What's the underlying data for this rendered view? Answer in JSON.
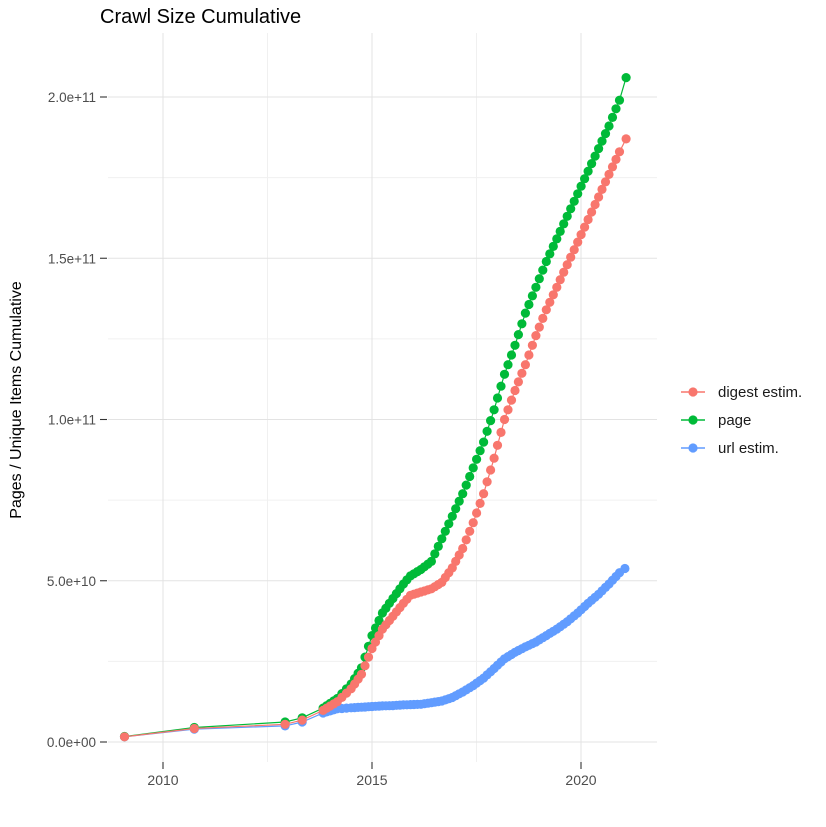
{
  "title": "Crawl Size Cumulative",
  "y_axis_title": "Pages / Unique Items Cumulative",
  "legend": {
    "position": "right",
    "items": [
      {
        "label": "digest estim.",
        "color": "#F8766D"
      },
      {
        "label": "page",
        "color": "#00BA38"
      },
      {
        "label": "url estim.",
        "color": "#619CFF"
      }
    ]
  },
  "colors": {
    "background": "#FFFFFF",
    "grid_major": "#E3E3E3",
    "grid_minor": "#F0F0F0",
    "tick_mark": "#333333",
    "tick_label": "#4D4D4D",
    "series_red": "#F8766D",
    "series_green": "#00BA38",
    "series_blue": "#619CFF"
  },
  "chart_data": {
    "type": "scatter",
    "title": "Crawl Size Cumulative",
    "xlabel": "",
    "ylabel": "Pages / Unique Items Cumulative",
    "x_tick_labels": [
      "2010",
      "2015",
      "2020"
    ],
    "x_tick_values": [
      2010,
      2015,
      2020
    ],
    "x_minor_tick_values": [
      2012.5,
      2017.5
    ],
    "y_tick_labels": [
      "0.0e+00",
      "5.0e+10",
      "1.0e+11",
      "1.5e+11",
      "2.0e+11"
    ],
    "y_tick_values_billions": [
      0,
      50,
      100,
      150,
      200
    ],
    "y_minor_tick_values_billions": [
      25,
      75,
      125,
      175
    ],
    "xlim": [
      2008.7,
      2021.8
    ],
    "ylim_billions": [
      0,
      212
    ],
    "grid": "major and minor light-gray gridlines on white panel",
    "legend_position": "right",
    "points_unit": "each point is [year, cumulative count in billions (1e9)]",
    "series": [
      {
        "name": "digest estim.",
        "color": "#F8766D",
        "points": [
          [
            2009.08,
            1.6
          ],
          [
            2010.75,
            4.2
          ],
          [
            2012.92,
            5.5
          ],
          [
            2013.33,
            6.8
          ],
          [
            2013.83,
            9.8
          ],
          [
            2014.17,
            12.5
          ],
          [
            2014.5,
            16.5
          ],
          [
            2014.75,
            21
          ],
          [
            2015.0,
            29
          ],
          [
            2015.25,
            35
          ],
          [
            2015.5,
            39
          ],
          [
            2015.75,
            43
          ],
          [
            2015.92,
            45.5
          ],
          [
            2016.17,
            46.5
          ],
          [
            2016.42,
            47.5
          ],
          [
            2016.67,
            49.5
          ],
          [
            2016.92,
            54
          ],
          [
            2017.17,
            60
          ],
          [
            2017.42,
            68
          ],
          [
            2017.67,
            77
          ],
          [
            2017.92,
            88
          ],
          [
            2018.17,
            100
          ],
          [
            2018.42,
            109
          ],
          [
            2018.67,
            117
          ],
          [
            2018.92,
            126
          ],
          [
            2019.17,
            134
          ],
          [
            2019.42,
            141
          ],
          [
            2019.67,
            148
          ],
          [
            2019.92,
            155
          ],
          [
            2020.17,
            162
          ],
          [
            2020.42,
            169
          ],
          [
            2020.67,
            176
          ],
          [
            2020.92,
            183
          ],
          [
            2021.08,
            187
          ]
        ]
      },
      {
        "name": "page",
        "color": "#00BA38",
        "points": [
          [
            2009.08,
            1.7
          ],
          [
            2010.75,
            4.5
          ],
          [
            2012.92,
            6.2
          ],
          [
            2013.33,
            7.5
          ],
          [
            2013.83,
            10.5
          ],
          [
            2014.17,
            13.5
          ],
          [
            2014.5,
            18
          ],
          [
            2014.75,
            23
          ],
          [
            2015.0,
            33
          ],
          [
            2015.25,
            40
          ],
          [
            2015.5,
            44.5
          ],
          [
            2015.75,
            49
          ],
          [
            2015.92,
            51.5
          ],
          [
            2016.17,
            53.5
          ],
          [
            2016.42,
            56
          ],
          [
            2016.67,
            63
          ],
          [
            2016.92,
            70
          ],
          [
            2017.17,
            77
          ],
          [
            2017.42,
            85
          ],
          [
            2017.67,
            93
          ],
          [
            2017.92,
            103
          ],
          [
            2018.17,
            114
          ],
          [
            2018.42,
            123
          ],
          [
            2018.67,
            133
          ],
          [
            2018.92,
            141
          ],
          [
            2019.17,
            149
          ],
          [
            2019.42,
            156
          ],
          [
            2019.67,
            163
          ],
          [
            2019.92,
            170
          ],
          [
            2020.17,
            177
          ],
          [
            2020.42,
            184
          ],
          [
            2020.67,
            191
          ],
          [
            2020.92,
            199
          ],
          [
            2021.08,
            206
          ]
        ]
      },
      {
        "name": "url estim.",
        "color": "#619CFF",
        "points": [
          [
            2009.08,
            1.6
          ],
          [
            2010.75,
            4.0
          ],
          [
            2012.92,
            5.0
          ],
          [
            2013.33,
            6.2
          ],
          [
            2013.83,
            9.0
          ],
          [
            2014.17,
            10.3
          ],
          [
            2014.5,
            10.6
          ],
          [
            2014.75,
            10.8
          ],
          [
            2015.0,
            11.0
          ],
          [
            2015.25,
            11.2
          ],
          [
            2015.5,
            11.3
          ],
          [
            2015.75,
            11.5
          ],
          [
            2015.92,
            11.6
          ],
          [
            2016.17,
            11.7
          ],
          [
            2016.42,
            12.2
          ],
          [
            2016.67,
            12.7
          ],
          [
            2016.92,
            13.8
          ],
          [
            2017.17,
            15.5
          ],
          [
            2017.42,
            17.5
          ],
          [
            2017.67,
            19.8
          ],
          [
            2017.92,
            22.8
          ],
          [
            2018.17,
            25.8
          ],
          [
            2018.42,
            27.8
          ],
          [
            2018.67,
            29.5
          ],
          [
            2018.92,
            31
          ],
          [
            2019.17,
            33
          ],
          [
            2019.42,
            35
          ],
          [
            2019.67,
            37.3
          ],
          [
            2019.92,
            40
          ],
          [
            2020.17,
            43
          ],
          [
            2020.42,
            45.8
          ],
          [
            2020.67,
            49
          ],
          [
            2020.92,
            52.5
          ],
          [
            2021.05,
            53.8
          ]
        ]
      }
    ]
  }
}
